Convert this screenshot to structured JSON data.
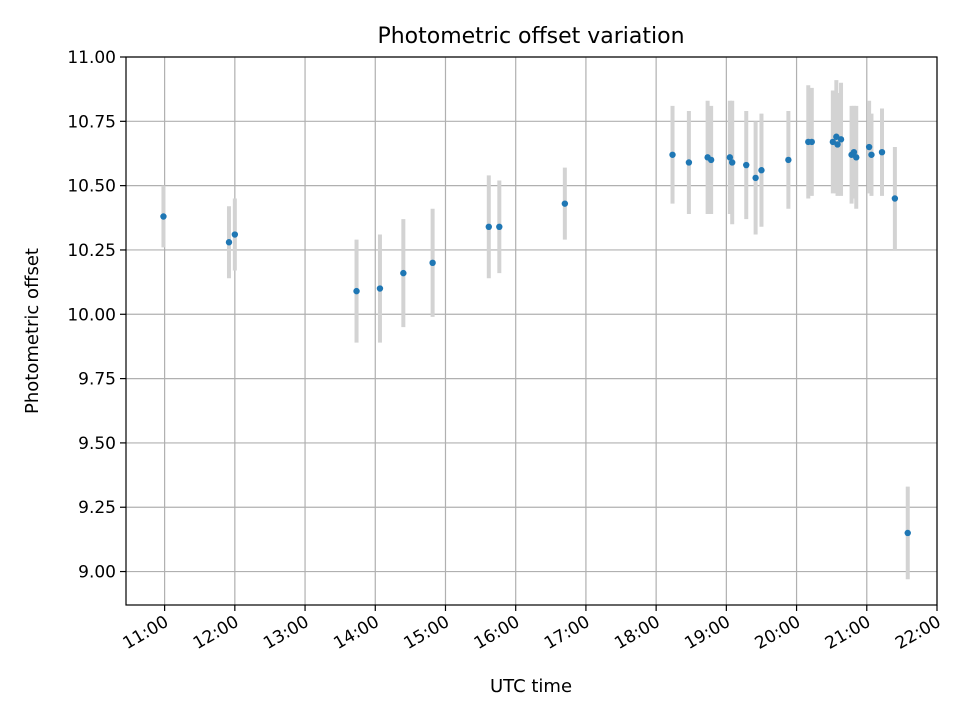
{
  "chart_data": {
    "type": "scatter",
    "title": "Photometric offset variation",
    "xlabel": "UTC time",
    "ylabel": "Photometric offset",
    "x_ticks": [
      "11:00",
      "12:00",
      "13:00",
      "14:00",
      "15:00",
      "16:00",
      "17:00",
      "18:00",
      "19:00",
      "20:00",
      "21:00",
      "22:00"
    ],
    "y_ticks": [
      "9.00",
      "9.25",
      "9.50",
      "9.75",
      "10.00",
      "10.25",
      "10.50",
      "10.75",
      "11.00"
    ],
    "xlim": [
      "10:27",
      "22:00"
    ],
    "ylim": [
      8.87,
      11.0
    ],
    "grid": true,
    "colors": {
      "points": "#1f77b4",
      "errorbars": "#d3d3d3",
      "grid": "#b0b0b0"
    },
    "points": [
      {
        "time": "10:59",
        "y": 10.38,
        "err": 0.12
      },
      {
        "time": "11:55",
        "y": 10.28,
        "err": 0.14
      },
      {
        "time": "12:00",
        "y": 10.31,
        "err": 0.14
      },
      {
        "time": "13:44",
        "y": 10.09,
        "err": 0.2
      },
      {
        "time": "14:04",
        "y": 10.1,
        "err": 0.21
      },
      {
        "time": "14:24",
        "y": 10.16,
        "err": 0.21
      },
      {
        "time": "14:49",
        "y": 10.2,
        "err": 0.21
      },
      {
        "time": "15:37",
        "y": 10.34,
        "err": 0.2
      },
      {
        "time": "15:46",
        "y": 10.34,
        "err": 0.18
      },
      {
        "time": "16:42",
        "y": 10.43,
        "err": 0.14
      },
      {
        "time": "18:14",
        "y": 10.62,
        "err": 0.19
      },
      {
        "time": "18:28",
        "y": 10.59,
        "err": 0.2
      },
      {
        "time": "18:44",
        "y": 10.61,
        "err": 0.22
      },
      {
        "time": "18:47",
        "y": 10.6,
        "err": 0.21
      },
      {
        "time": "19:03",
        "y": 10.61,
        "err": 0.22
      },
      {
        "time": "19:05",
        "y": 10.59,
        "err": 0.24
      },
      {
        "time": "19:17",
        "y": 10.58,
        "err": 0.21
      },
      {
        "time": "19:25",
        "y": 10.53,
        "err": 0.22
      },
      {
        "time": "19:30",
        "y": 10.56,
        "err": 0.22
      },
      {
        "time": "19:53",
        "y": 10.6,
        "err": 0.19
      },
      {
        "time": "20:10",
        "y": 10.67,
        "err": 0.22
      },
      {
        "time": "20:13",
        "y": 10.67,
        "err": 0.21
      },
      {
        "time": "20:31",
        "y": 10.67,
        "err": 0.2
      },
      {
        "time": "20:34",
        "y": 10.69,
        "err": 0.22
      },
      {
        "time": "20:35",
        "y": 10.66,
        "err": 0.2
      },
      {
        "time": "20:38",
        "y": 10.68,
        "err": 0.22
      },
      {
        "time": "20:47",
        "y": 10.62,
        "err": 0.19
      },
      {
        "time": "20:49",
        "y": 10.63,
        "err": 0.18
      },
      {
        "time": "20:51",
        "y": 10.61,
        "err": 0.2
      },
      {
        "time": "21:02",
        "y": 10.65,
        "err": 0.18
      },
      {
        "time": "21:04",
        "y": 10.62,
        "err": 0.16
      },
      {
        "time": "21:13",
        "y": 10.63,
        "err": 0.17
      },
      {
        "time": "21:24",
        "y": 10.45,
        "err": 0.2
      },
      {
        "time": "21:35",
        "y": 9.15,
        "err": 0.18
      }
    ]
  }
}
